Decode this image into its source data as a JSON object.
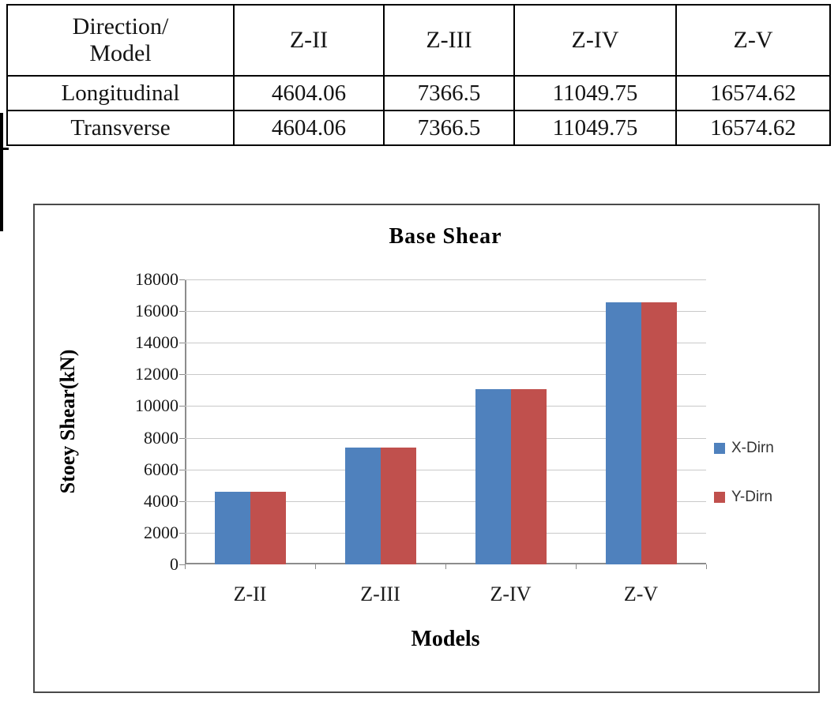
{
  "table": {
    "columns": [
      "Direction/\nModel",
      "Z-II",
      "Z-III",
      "Z-IV",
      "Z-V"
    ],
    "rows": [
      {
        "label": "Longitudinal",
        "values": [
          "4604.06",
          "7366.5",
          "11049.75",
          "16574.62"
        ]
      },
      {
        "label": "Transverse",
        "values": [
          "4604.06",
          "7366.5",
          "11049.75",
          "16574.62"
        ]
      }
    ]
  },
  "chart_data": {
    "type": "bar",
    "title": "Base Shear",
    "xlabel": "Models",
    "ylabel": "Stoey Shear(kN)",
    "categories": [
      "Z-II",
      "Z-III",
      "Z-IV",
      "Z-V"
    ],
    "series": [
      {
        "name": "X-Dirn",
        "color": "#4f81bd",
        "values": [
          4604.06,
          7366.5,
          11049.75,
          16574.62
        ]
      },
      {
        "name": "Y-Dirn",
        "color": "#c0504d",
        "values": [
          4604.06,
          7366.5,
          11049.75,
          16574.62
        ]
      }
    ],
    "ylim": [
      0,
      18000
    ],
    "ytick_step": 2000,
    "grid": true,
    "legend_position": "right"
  }
}
